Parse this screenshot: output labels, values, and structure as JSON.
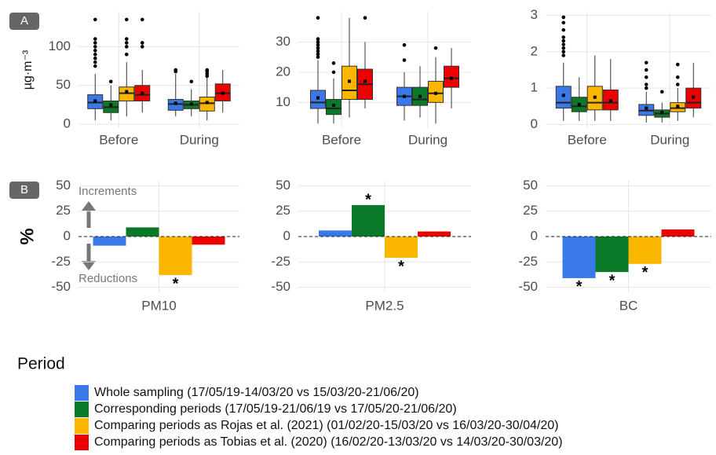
{
  "legend": {
    "title": "Period",
    "entries": [
      {
        "name": "Whole sampling (17/05/19-14/03/20 vs 15/03/20-21/06/20)",
        "color": "#3b78e7"
      },
      {
        "name": "Corresponding periods (17/05/19-21/06/19 vs 17/05/20-21/06/20)",
        "color": "#0b7a28"
      },
      {
        "name": "Comparing periods as Rojas et al. (2021) (01/02/20-15/03/20 vs 16/03/20-30/04/20)",
        "color": "#fbb700"
      },
      {
        "name": "Comparing periods as Tobias et al. (2020) (16/02/20-13/03/20 vs 14/03/20-30/03/20)",
        "color": "#ec0000"
      }
    ]
  },
  "chart_data": [
    {
      "type": "boxplot",
      "panel_label": "A",
      "y_label": "µg·m⁻³",
      "categories": [
        "Before",
        "During"
      ],
      "ylim": [
        -5,
        145
      ],
      "yticks": [
        0,
        50,
        100
      ],
      "grid": true,
      "series": [
        {
          "whisker_low": [
            5,
            10
          ],
          "q1": [
            20,
            18
          ],
          "median": [
            28,
            26
          ],
          "q3": [
            38,
            32
          ],
          "whisker_high": [
            65,
            65
          ],
          "mean": [
            30,
            27
          ],
          "outliers": [
            [
              75,
              80,
              85,
              90,
              95,
              100,
              105,
              110,
              135
            ],
            [
              68,
              70
            ]
          ]
        },
        {
          "whisker_low": [
            5,
            10
          ],
          "q1": [
            15,
            20
          ],
          "median": [
            22,
            25
          ],
          "q3": [
            30,
            30
          ],
          "whisker_high": [
            50,
            45
          ],
          "mean": [
            25,
            26
          ],
          "outliers": [
            [
              55
            ],
            [
              55
            ]
          ]
        },
        {
          "whisker_low": [
            10,
            5
          ],
          "q1": [
            30,
            17
          ],
          "median": [
            40,
            27
          ],
          "q3": [
            48,
            35
          ],
          "whisker_high": [
            80,
            60
          ],
          "mean": [
            42,
            28
          ],
          "outliers": [
            [
              90,
              100,
              105,
              110,
              135
            ],
            [
              62,
              65,
              68,
              70
            ]
          ]
        },
        {
          "whisker_low": [
            15,
            15
          ],
          "q1": [
            30,
            30
          ],
          "median": [
            38,
            40
          ],
          "q3": [
            50,
            52
          ],
          "whisker_high": [
            70,
            70
          ],
          "mean": [
            40,
            40
          ],
          "outliers": [
            [
              100,
              105,
              135
            ],
            []
          ]
        }
      ]
    },
    {
      "type": "boxplot",
      "categories": [
        "Before",
        "During"
      ],
      "ylim": [
        1.5,
        40
      ],
      "yticks": [
        10,
        20,
        30
      ],
      "grid": true,
      "series": [
        {
          "whisker_low": [
            3,
            4
          ],
          "q1": [
            8,
            9
          ],
          "median": [
            10,
            12
          ],
          "q3": [
            14,
            15
          ],
          "whisker_high": [
            24,
            20
          ],
          "mean": [
            11.5,
            12
          ],
          "outliers": [
            [
              25,
              26,
              27,
              28,
              29,
              30,
              31,
              38
            ],
            [
              24,
              29
            ]
          ]
        },
        {
          "whisker_low": [
            3,
            5
          ],
          "q1": [
            6,
            9
          ],
          "median": [
            8,
            11
          ],
          "q3": [
            11,
            15
          ],
          "whisker_high": [
            18,
            22
          ],
          "mean": [
            9,
            12
          ],
          "outliers": [
            [
              20,
              23
            ],
            []
          ]
        },
        {
          "whisker_low": [
            5,
            3
          ],
          "q1": [
            11,
            10
          ],
          "median": [
            14,
            13
          ],
          "q3": [
            22,
            17
          ],
          "whisker_high": [
            38,
            25
          ],
          "mean": [
            17,
            13
          ],
          "outliers": [
            [],
            [
              28
            ]
          ]
        },
        {
          "whisker_low": [
            8,
            8
          ],
          "q1": [
            11,
            15
          ],
          "median": [
            16,
            18
          ],
          "q3": [
            21,
            22
          ],
          "whisker_high": [
            30,
            28
          ],
          "mean": [
            17,
            18
          ],
          "outliers": [
            [
              38
            ],
            []
          ]
        }
      ]
    },
    {
      "type": "boxplot",
      "categories": [
        "Before",
        "During"
      ],
      "ylim": [
        -0.1,
        3.1
      ],
      "yticks": [
        0,
        1,
        2,
        3
      ],
      "grid": true,
      "series": [
        {
          "whisker_low": [
            0.1,
            0.05
          ],
          "q1": [
            0.45,
            0.25
          ],
          "median": [
            0.6,
            0.38
          ],
          "q3": [
            1.05,
            0.55
          ],
          "whisker_high": [
            1.7,
            0.9
          ],
          "mean": [
            0.8,
            0.45
          ],
          "outliers": [
            [
              1.9,
              2.0,
              2.1,
              2.2,
              2.3,
              2.4,
              2.6,
              2.8,
              2.95
            ],
            [
              1.0,
              1.1,
              1.3,
              1.5,
              1.7
            ]
          ]
        },
        {
          "whisker_low": [
            0.1,
            0.05
          ],
          "q1": [
            0.35,
            0.2
          ],
          "median": [
            0.5,
            0.3
          ],
          "q3": [
            0.75,
            0.4
          ],
          "whisker_high": [
            1.3,
            0.6
          ],
          "mean": [
            0.55,
            0.33
          ],
          "outliers": [
            [],
            [
              0.9
            ]
          ]
        },
        {
          "whisker_low": [
            0.1,
            0.1
          ],
          "q1": [
            0.4,
            0.35
          ],
          "median": [
            0.6,
            0.45
          ],
          "q3": [
            1.05,
            0.6
          ],
          "whisker_high": [
            1.9,
            1.0
          ],
          "mean": [
            0.75,
            0.5
          ],
          "outliers": [
            [],
            [
              1.1,
              1.3,
              1.65
            ]
          ]
        },
        {
          "whisker_low": [
            0.1,
            0.2
          ],
          "q1": [
            0.4,
            0.45
          ],
          "median": [
            0.6,
            0.6
          ],
          "q3": [
            0.95,
            1.0
          ],
          "whisker_high": [
            1.8,
            1.7
          ],
          "mean": [
            0.65,
            0.75
          ],
          "outliers": [
            [],
            []
          ]
        }
      ]
    },
    {
      "type": "bar",
      "panel_label": "B",
      "y_label": "%",
      "annotations": [
        "Increments",
        "Reductions"
      ],
      "x_label": "PM10",
      "ylim": [
        -55,
        55
      ],
      "yticks": [
        -50,
        -25,
        0,
        25,
        50
      ],
      "grid": true,
      "series": [
        {
          "values": [
            -9
          ]
        },
        {
          "values": [
            9
          ]
        },
        {
          "values": [
            -38
          ],
          "note": "*"
        },
        {
          "values": [
            -8
          ]
        }
      ]
    },
    {
      "type": "bar",
      "x_label": "PM2.5",
      "ylim": [
        -55,
        55
      ],
      "yticks": [
        -50,
        -25,
        0,
        25,
        50
      ],
      "grid": true,
      "series": [
        {
          "values": [
            6
          ]
        },
        {
          "values": [
            31
          ],
          "note": "*"
        },
        {
          "values": [
            -21
          ],
          "note": "*"
        },
        {
          "values": [
            5
          ]
        }
      ]
    },
    {
      "type": "bar",
      "x_label": "BC",
      "ylim": [
        -55,
        55
      ],
      "yticks": [
        -50,
        -25,
        0,
        25,
        50
      ],
      "grid": true,
      "series": [
        {
          "values": [
            -41
          ],
          "note": "*"
        },
        {
          "values": [
            -35
          ],
          "note": "*"
        },
        {
          "values": [
            -27
          ],
          "note": "*"
        },
        {
          "values": [
            7
          ]
        }
      ]
    }
  ]
}
